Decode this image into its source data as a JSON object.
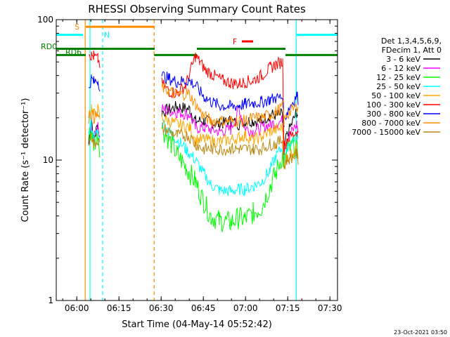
{
  "chart_data": {
    "type": "line",
    "title": "RHESSI Observing Summary Count Rates",
    "xlabel": "Start Time (04-May-14 05:52:42)",
    "ylabel": "Count Rate (s⁻¹ detector⁻¹)",
    "x_unit": "minutes since 05:52:42",
    "xlim": [
      0,
      100
    ],
    "ylim": [
      1,
      100
    ],
    "y_scale": "log",
    "x_ticks": [
      {
        "value": 7.3,
        "label": "06:00"
      },
      {
        "value": 22.3,
        "label": "06:15"
      },
      {
        "value": 37.3,
        "label": "06:30"
      },
      {
        "value": 52.3,
        "label": "06:45"
      },
      {
        "value": 67.3,
        "label": "07:00"
      },
      {
        "value": 82.3,
        "label": "07:15"
      },
      {
        "value": 97.3,
        "label": "07:30"
      }
    ],
    "y_ticks": [
      {
        "value": 1,
        "label": "1"
      },
      {
        "value": 10,
        "label": "10"
      },
      {
        "value": 100,
        "label": "100"
      }
    ],
    "legend": {
      "header": [
        "Det 1,3,4,5,6,9,",
        "FDecim 1, Att 0"
      ],
      "placement": "right"
    },
    "series": [
      {
        "name": "3 - 6 keV",
        "color": "#000000",
        "points": [
          [
            11.5,
            13
          ],
          [
            12.5,
            20
          ],
          [
            13.3,
            14
          ],
          [
            14.8,
            18
          ],
          [
            15.5,
            14
          ],
          [
            37.5,
            22
          ],
          [
            43,
            24
          ],
          [
            47.5,
            23
          ],
          [
            49.5,
            19
          ],
          [
            52.5,
            19
          ],
          [
            58,
            18
          ],
          [
            62,
            19
          ],
          [
            65,
            18
          ],
          [
            67,
            19
          ],
          [
            70,
            19
          ],
          [
            73,
            19
          ],
          [
            76,
            21
          ],
          [
            80.5,
            21
          ],
          [
            81,
            12
          ],
          [
            82,
            15
          ],
          [
            85.5,
            22
          ],
          [
            86,
            21
          ]
        ]
      },
      {
        "name": "6 - 12 keV",
        "color": "#ff00ff",
        "points": [
          [
            11.5,
            14
          ],
          [
            12.5,
            19
          ],
          [
            13.3,
            14
          ],
          [
            14.8,
            18
          ],
          [
            15.5,
            14
          ],
          [
            37.5,
            23
          ],
          [
            43,
            22
          ],
          [
            47.5,
            21
          ],
          [
            49.5,
            17
          ],
          [
            52.5,
            17
          ],
          [
            58,
            16
          ],
          [
            62,
            16.5
          ],
          [
            65,
            23
          ],
          [
            66,
            20
          ],
          [
            67,
            17
          ],
          [
            70,
            16
          ],
          [
            73,
            17
          ],
          [
            76,
            18
          ],
          [
            80.5,
            19
          ],
          [
            81,
            12
          ],
          [
            82,
            14
          ],
          [
            85.5,
            18
          ],
          [
            86,
            16
          ]
        ]
      },
      {
        "name": "12 - 25 keV",
        "color": "#00ff00",
        "points": [
          [
            11.5,
            14
          ],
          [
            12.5,
            17
          ],
          [
            13.3,
            13
          ],
          [
            14.8,
            15
          ],
          [
            15.5,
            12.5
          ],
          [
            37.5,
            17
          ],
          [
            40,
            14
          ],
          [
            43,
            11
          ],
          [
            46,
            9
          ],
          [
            49.5,
            7
          ],
          [
            52.5,
            5
          ],
          [
            55,
            4
          ],
          [
            58,
            3.7
          ],
          [
            62,
            3.6
          ],
          [
            65,
            3.9
          ],
          [
            67,
            3.8
          ],
          [
            70,
            4.2
          ],
          [
            73,
            4.6
          ],
          [
            76,
            6.5
          ],
          [
            78,
            8
          ],
          [
            80.5,
            11
          ],
          [
            81,
            9
          ],
          [
            82,
            11.5
          ],
          [
            85.5,
            13
          ],
          [
            86,
            12
          ]
        ]
      },
      {
        "name": "25 - 50 keV",
        "color": "#00ffff",
        "points": [
          [
            11.5,
            15
          ],
          [
            12.5,
            18
          ],
          [
            13.3,
            14
          ],
          [
            14.8,
            16
          ],
          [
            15.5,
            14
          ],
          [
            37.5,
            19
          ],
          [
            40,
            16
          ],
          [
            43,
            14
          ],
          [
            46,
            12
          ],
          [
            49.5,
            10
          ],
          [
            52.5,
            8
          ],
          [
            55,
            6.7
          ],
          [
            58,
            6.1
          ],
          [
            62,
            6
          ],
          [
            65,
            6.2
          ],
          [
            67,
            6.2
          ],
          [
            70,
            6.5
          ],
          [
            73,
            7
          ],
          [
            76,
            8.5
          ],
          [
            78,
            10.5
          ],
          [
            80.5,
            12.5
          ],
          [
            81,
            10
          ],
          [
            82,
            12.5
          ],
          [
            85.5,
            15
          ],
          [
            86,
            14
          ]
        ]
      },
      {
        "name": "50 - 100 keV",
        "color": "#ffa500",
        "points": [
          [
            11.5,
            20
          ],
          [
            12.5,
            24
          ],
          [
            13.3,
            21
          ],
          [
            14.8,
            23
          ],
          [
            15.5,
            20
          ],
          [
            37.5,
            20
          ],
          [
            43,
            18
          ],
          [
            47.5,
            17
          ],
          [
            49.5,
            14
          ],
          [
            52.5,
            14
          ],
          [
            58,
            13.5
          ],
          [
            62,
            14
          ],
          [
            65,
            14.5
          ],
          [
            67,
            15
          ],
          [
            70,
            14
          ],
          [
            73,
            14.5
          ],
          [
            76,
            16
          ],
          [
            80.5,
            17
          ],
          [
            81,
            9.5
          ],
          [
            82,
            10.5
          ],
          [
            85.5,
            12
          ],
          [
            86,
            11
          ]
        ]
      },
      {
        "name": "100 - 300 keV",
        "color": "#ff0000",
        "points": [
          [
            11.5,
            60
          ],
          [
            12.5,
            55
          ],
          [
            13.3,
            55
          ],
          [
            14.8,
            52
          ],
          [
            15.5,
            48
          ],
          [
            37.5,
            35
          ],
          [
            40,
            31
          ],
          [
            43,
            30
          ],
          [
            46,
            34
          ],
          [
            49.5,
            55
          ],
          [
            51,
            50
          ],
          [
            53,
            44
          ],
          [
            56,
            40
          ],
          [
            59,
            37
          ],
          [
            62,
            35.5
          ],
          [
            65,
            35
          ],
          [
            67,
            36
          ],
          [
            70,
            37
          ],
          [
            73,
            40
          ],
          [
            76,
            45
          ],
          [
            78,
            48
          ],
          [
            80.5,
            50
          ],
          [
            81,
            12
          ],
          [
            82,
            14
          ],
          [
            85.5,
            16
          ],
          [
            86,
            15
          ]
        ]
      },
      {
        "name": "300 - 800 keV",
        "color": "#0000ff",
        "points": [
          [
            11.5,
            33
          ],
          [
            12.5,
            38
          ],
          [
            13.3,
            36
          ],
          [
            14.8,
            37
          ],
          [
            15.5,
            34
          ],
          [
            37.5,
            40
          ],
          [
            40,
            38
          ],
          [
            43,
            36
          ],
          [
            47,
            37
          ],
          [
            49.5,
            34
          ],
          [
            52,
            29
          ],
          [
            55,
            26
          ],
          [
            58,
            24.5
          ],
          [
            62,
            24
          ],
          [
            65,
            24.5
          ],
          [
            67,
            25
          ],
          [
            70,
            25.5
          ],
          [
            73,
            26
          ],
          [
            76,
            27
          ],
          [
            78,
            27.5
          ],
          [
            80.5,
            28
          ],
          [
            81,
            19
          ],
          [
            82,
            22
          ],
          [
            85.5,
            29
          ],
          [
            86,
            27
          ]
        ]
      },
      {
        "name": "800 - 7000 keV",
        "color": "#ff8c00",
        "points": [
          [
            11.5,
            22
          ],
          [
            12.5,
            21
          ],
          [
            13.3,
            20
          ],
          [
            14.8,
            21
          ],
          [
            15.5,
            19
          ],
          [
            37.5,
            33
          ],
          [
            40,
            31
          ],
          [
            43,
            29
          ],
          [
            47,
            30
          ],
          [
            49.5,
            25
          ],
          [
            52,
            21
          ],
          [
            55,
            19
          ],
          [
            58,
            19
          ],
          [
            62,
            19
          ],
          [
            65,
            19
          ],
          [
            67,
            19
          ],
          [
            70,
            20
          ],
          [
            73,
            20
          ],
          [
            76,
            21
          ],
          [
            78,
            22
          ],
          [
            80.5,
            24
          ],
          [
            81,
            19
          ],
          [
            82,
            21
          ],
          [
            85.5,
            24
          ],
          [
            86,
            23
          ]
        ]
      },
      {
        "name": "7000 - 15000 keV",
        "color": "#b8860b",
        "points": [
          [
            11.5,
            13
          ],
          [
            12.5,
            15
          ],
          [
            13.3,
            13
          ],
          [
            14.8,
            14
          ],
          [
            15.5,
            13
          ],
          [
            37.5,
            17
          ],
          [
            43,
            15
          ],
          [
            47,
            15
          ],
          [
            49.5,
            13
          ],
          [
            52,
            12
          ],
          [
            55,
            12
          ],
          [
            58,
            12
          ],
          [
            62,
            12
          ],
          [
            65,
            12
          ],
          [
            67,
            12
          ],
          [
            70,
            12
          ],
          [
            73,
            12
          ],
          [
            76,
            13
          ],
          [
            78,
            13
          ],
          [
            80.5,
            14
          ],
          [
            81,
            9
          ],
          [
            82,
            10
          ],
          [
            85.5,
            11
          ],
          [
            86,
            10
          ]
        ]
      }
    ],
    "vertical_lines": [
      {
        "x": 10.3,
        "color": "#ff8c00",
        "style": "solid"
      },
      {
        "x": 12,
        "color": "#00ffff",
        "style": "solid"
      },
      {
        "x": 16.5,
        "color": "#00ffff",
        "style": "dashed"
      },
      {
        "x": 34.8,
        "color": "#ff8c00",
        "style": "dashed"
      },
      {
        "x": 85.3,
        "color": "#00ffff",
        "style": "solid"
      },
      {
        "x": 100,
        "color": "#00ffff",
        "style": "dashed"
      }
    ],
    "flag_bars": [
      {
        "label": "S",
        "color": "#ff8c00",
        "x0": 10.5,
        "x1": 35,
        "y": 89,
        "label_x": 7.4
      },
      {
        "label": "N",
        "color": "#00ffff",
        "x0": 0,
        "x1": 9.5,
        "y": 78,
        "label_x": 18
      },
      {
        "label": "N",
        "color": "#00ffff",
        "x0": 85.3,
        "x1": 100,
        "y": 78,
        "label_x": null
      },
      {
        "label": "F",
        "color": "#ff0000",
        "x0": 66,
        "x1": 70,
        "y": 70,
        "label_x": 63.5
      },
      {
        "label": "RD0",
        "color": "#008000",
        "x0": 0,
        "x1": 35,
        "y": 62,
        "label_x": null
      },
      {
        "label": "RD0",
        "color": "#008000",
        "x0": 50,
        "x1": 81.5,
        "y": 62,
        "label_x": null
      },
      {
        "label": "RD6",
        "color": "#008000",
        "x0": 0,
        "x1": 10.5,
        "y": 56,
        "label_x": null
      },
      {
        "label": "RD6",
        "color": "#008000",
        "x0": 34.8,
        "x1": 50,
        "y": 56,
        "label_x": null
      },
      {
        "label": "RD6",
        "color": "#008000",
        "x0": 81.5,
        "x1": 100,
        "y": 56,
        "label_x": null
      }
    ],
    "side_labels": {
      "rd0": "RD0",
      "rd6": "RD6"
    },
    "footer_date": "23-Oct-2021 03:50"
  }
}
